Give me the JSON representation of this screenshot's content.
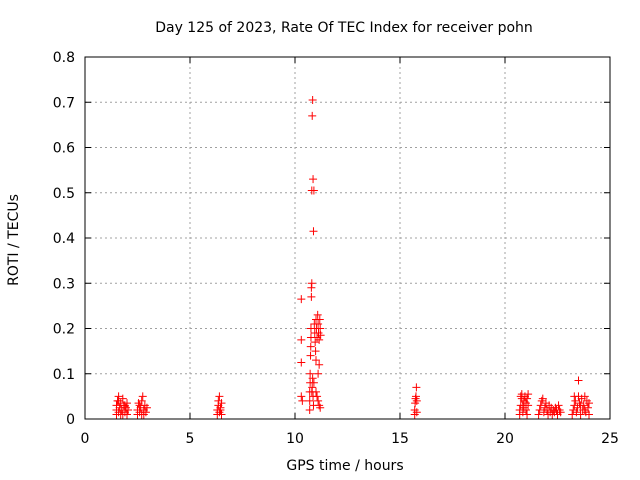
{
  "chart_data": {
    "type": "scatter",
    "title": "Day 125 of 2023, Rate Of TEC Index for receiver pohn",
    "xlabel": "GPS time / hours",
    "ylabel": "ROTI / TECUs",
    "xlim": [
      0,
      25
    ],
    "ylim": [
      0,
      0.8
    ],
    "xticks": [
      0,
      5,
      10,
      15,
      20,
      25
    ],
    "xtick_labels": [
      "0",
      "5",
      "10",
      "15",
      "20",
      "25"
    ],
    "yticks": [
      0,
      0.1,
      0.2,
      0.3,
      0.4,
      0.5,
      0.6,
      0.7,
      0.8
    ],
    "ytick_labels": [
      "0",
      "0.1",
      "0.2",
      "0.3",
      "0.4",
      "0.5",
      "0.6",
      "0.7",
      "0.8"
    ],
    "grid": true,
    "marker": "+",
    "color": "#ff0000",
    "series": [
      {
        "name": "ROTI",
        "points": [
          [
            1.5,
            0.01
          ],
          [
            1.5,
            0.02
          ],
          [
            1.5,
            0.03
          ],
          [
            1.55,
            0.04
          ],
          [
            1.6,
            0.05
          ],
          [
            1.6,
            0.015
          ],
          [
            1.65,
            0.025
          ],
          [
            1.7,
            0.035
          ],
          [
            1.7,
            0.01
          ],
          [
            1.75,
            0.02
          ],
          [
            1.8,
            0.045
          ],
          [
            1.85,
            0.03
          ],
          [
            1.9,
            0.015
          ],
          [
            1.95,
            0.025
          ],
          [
            2.0,
            0.035
          ],
          [
            2.0,
            0.01
          ],
          [
            2.05,
            0.02
          ],
          [
            1.6,
            0.04
          ],
          [
            1.8,
            0.01
          ],
          [
            1.9,
            0.03
          ],
          [
            2.5,
            0.01
          ],
          [
            2.5,
            0.02
          ],
          [
            2.55,
            0.035
          ],
          [
            2.6,
            0.015
          ],
          [
            2.65,
            0.025
          ],
          [
            2.7,
            0.04
          ],
          [
            2.75,
            0.05
          ],
          [
            2.8,
            0.02
          ],
          [
            2.8,
            0.01
          ],
          [
            2.85,
            0.03
          ],
          [
            2.9,
            0.015
          ],
          [
            2.95,
            0.025
          ],
          [
            2.7,
            0.01
          ],
          [
            2.6,
            0.03
          ],
          [
            6.3,
            0.01
          ],
          [
            6.3,
            0.02
          ],
          [
            6.35,
            0.03
          ],
          [
            6.4,
            0.05
          ],
          [
            6.4,
            0.015
          ],
          [
            6.45,
            0.025
          ],
          [
            6.5,
            0.035
          ],
          [
            6.5,
            0.01
          ],
          [
            6.35,
            0.04
          ],
          [
            6.45,
            0.02
          ],
          [
            10.3,
            0.265
          ],
          [
            10.3,
            0.175
          ],
          [
            10.3,
            0.125
          ],
          [
            10.3,
            0.05
          ],
          [
            10.35,
            0.04
          ],
          [
            10.7,
            0.02
          ],
          [
            10.7,
            0.04
          ],
          [
            10.7,
            0.06
          ],
          [
            10.72,
            0.08
          ],
          [
            10.72,
            0.1
          ],
          [
            10.74,
            0.14
          ],
          [
            10.75,
            0.16
          ],
          [
            10.76,
            0.18
          ],
          [
            10.76,
            0.2
          ],
          [
            10.78,
            0.27
          ],
          [
            10.78,
            0.29
          ],
          [
            10.8,
            0.3
          ],
          [
            10.8,
            0.505
          ],
          [
            10.82,
            0.67
          ],
          [
            10.84,
            0.705
          ],
          [
            10.86,
            0.53
          ],
          [
            10.88,
            0.415
          ],
          [
            10.9,
            0.505
          ],
          [
            10.8,
            0.06
          ],
          [
            10.82,
            0.07
          ],
          [
            10.84,
            0.09
          ],
          [
            10.86,
            0.05
          ],
          [
            10.88,
            0.03
          ],
          [
            10.9,
            0.08
          ],
          [
            10.92,
            0.21
          ],
          [
            10.94,
            0.19
          ],
          [
            10.96,
            0.17
          ],
          [
            10.98,
            0.15
          ],
          [
            11.0,
            0.22
          ],
          [
            11.02,
            0.2
          ],
          [
            11.05,
            0.18
          ],
          [
            11.08,
            0.23
          ],
          [
            11.1,
            0.21
          ],
          [
            11.12,
            0.19
          ],
          [
            11.15,
            0.175
          ],
          [
            11.18,
            0.22
          ],
          [
            11.2,
            0.2
          ],
          [
            11.22,
            0.185
          ],
          [
            11.0,
            0.06
          ],
          [
            11.05,
            0.05
          ],
          [
            11.1,
            0.04
          ],
          [
            11.15,
            0.03
          ],
          [
            11.2,
            0.025
          ],
          [
            11.1,
            0.1
          ],
          [
            11.15,
            0.12
          ],
          [
            11.0,
            0.13
          ],
          [
            15.7,
            0.01
          ],
          [
            15.7,
            0.02
          ],
          [
            15.72,
            0.035
          ],
          [
            15.74,
            0.045
          ],
          [
            15.76,
            0.05
          ],
          [
            15.78,
            0.07
          ],
          [
            15.8,
            0.015
          ],
          [
            15.8,
            0.04
          ],
          [
            20.7,
            0.01
          ],
          [
            20.7,
            0.02
          ],
          [
            20.75,
            0.03
          ],
          [
            20.8,
            0.045
          ],
          [
            20.8,
            0.055
          ],
          [
            20.85,
            0.015
          ],
          [
            20.9,
            0.025
          ],
          [
            20.9,
            0.04
          ],
          [
            20.95,
            0.05
          ],
          [
            21.0,
            0.02
          ],
          [
            21.0,
            0.035
          ],
          [
            21.05,
            0.01
          ],
          [
            21.1,
            0.03
          ],
          [
            20.75,
            0.05
          ],
          [
            20.85,
            0.03
          ],
          [
            21.1,
            0.055
          ],
          [
            21.05,
            0.045
          ],
          [
            21.6,
            0.01
          ],
          [
            21.65,
            0.02
          ],
          [
            21.7,
            0.03
          ],
          [
            21.75,
            0.04
          ],
          [
            21.8,
            0.045
          ],
          [
            21.85,
            0.015
          ],
          [
            21.9,
            0.025
          ],
          [
            21.95,
            0.035
          ],
          [
            22.0,
            0.02
          ],
          [
            22.05,
            0.01
          ],
          [
            22.1,
            0.03
          ],
          [
            22.15,
            0.015
          ],
          [
            22.2,
            0.025
          ],
          [
            22.25,
            0.01
          ],
          [
            22.3,
            0.02
          ],
          [
            22.35,
            0.015
          ],
          [
            22.4,
            0.025
          ],
          [
            22.45,
            0.02
          ],
          [
            22.5,
            0.01
          ],
          [
            22.55,
            0.03
          ],
          [
            22.6,
            0.02
          ],
          [
            22.65,
            0.015
          ],
          [
            23.2,
            0.01
          ],
          [
            23.25,
            0.02
          ],
          [
            23.3,
            0.03
          ],
          [
            23.35,
            0.04
          ],
          [
            23.4,
            0.015
          ],
          [
            23.45,
            0.025
          ],
          [
            23.5,
            0.085
          ],
          [
            23.5,
            0.05
          ],
          [
            23.55,
            0.035
          ],
          [
            23.6,
            0.01
          ],
          [
            23.65,
            0.045
          ],
          [
            23.7,
            0.02
          ],
          [
            23.75,
            0.03
          ],
          [
            23.8,
            0.05
          ],
          [
            23.85,
            0.015
          ],
          [
            23.9,
            0.04
          ],
          [
            23.95,
            0.025
          ],
          [
            24.0,
            0.035
          ],
          [
            24.0,
            0.01
          ],
          [
            23.3,
            0.05
          ],
          [
            23.6,
            0.03
          ],
          [
            23.8,
            0.02
          ]
        ]
      }
    ]
  }
}
